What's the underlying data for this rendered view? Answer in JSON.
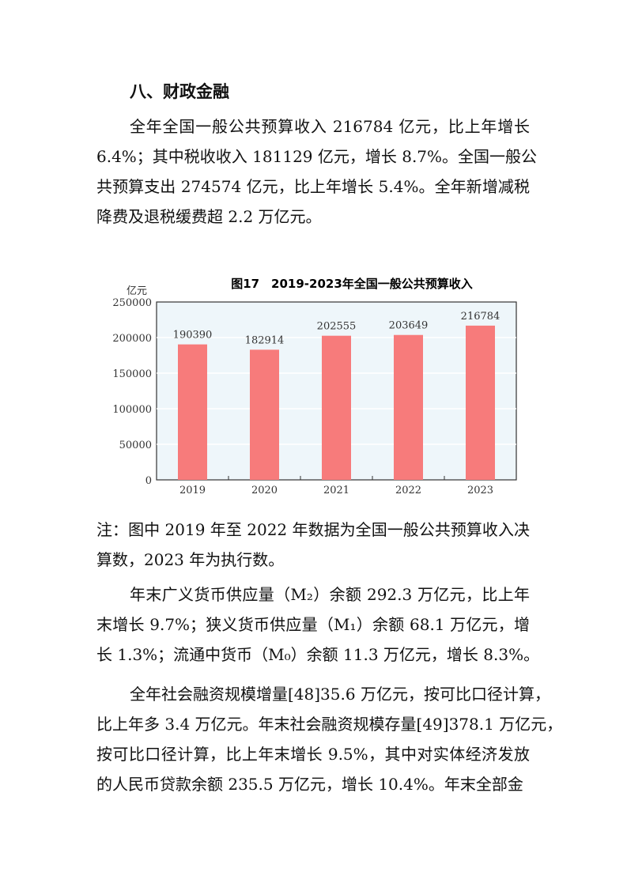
{
  "section_title": "八、财政金融",
  "para1": [
    "全年全国一般公共预算收入 216784 亿元，比上年增长",
    "6.4%；其中税收收入 181129 亿元，增长 8.7%。全国一般公",
    "共预算支出 274574 亿元，比上年增长 5.4%。全年新增减税",
    "降费及退税缓费超 2.2 万亿元。"
  ],
  "note": [
    "注：图中 2019 年至 2022 年数据为全国一般公共预算收入决",
    "算数，2023 年为执行数。"
  ],
  "para2": [
    "年末广义货币供应量（M₂）余额 292.3 万亿元，比上年",
    "末增长 9.7%；狭义货币供应量（M₁）余额 68.1 万亿元，增",
    "长 1.3%；流通中货币（M₀）余额 11.3 万亿元，增长 8.3%。"
  ],
  "para3": [
    "全年社会融资规模增量[48]35.6 万亿元，按可比口径计算，",
    "比上年多 3.4 万亿元。年末社会融资规模存量[49]378.1 万亿元，",
    "按可比口径计算，比上年末增长 9.5%，其中对实体经济发放",
    "的人民币贷款余额 235.5 万亿元，增长 10.4%。年末全部金"
  ],
  "chart_data": {
    "type": "bar",
    "title": "图17　2019-2023年全国一般公共预算收入",
    "ylabel": "亿元",
    "categories": [
      "2019",
      "2020",
      "2021",
      "2022",
      "2023"
    ],
    "values": [
      190390,
      182914,
      202555,
      203649,
      216784
    ],
    "ylim": [
      0,
      250000
    ],
    "yticks": [
      0,
      50000,
      100000,
      150000,
      200000,
      250000
    ],
    "grid": true,
    "bar_color": "#f77b7b",
    "plot_bg": "#eef6fa"
  }
}
